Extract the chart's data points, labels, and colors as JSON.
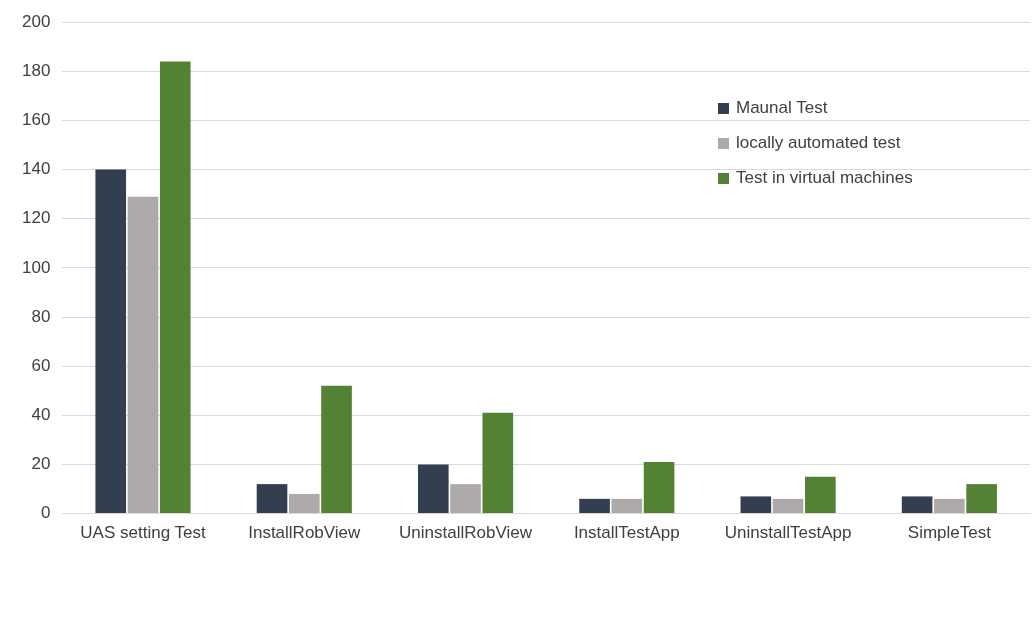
{
  "chart_data": {
    "type": "bar",
    "categories": [
      "UAS setting Test",
      "InstallRobView",
      "UninstallRobView",
      "InstallTestApp",
      "UninstallTestApp",
      "SimpleTest"
    ],
    "series": [
      {
        "name": "Maunal Test",
        "color": "#333f50",
        "values": [
          140,
          12,
          20,
          6,
          7,
          7
        ]
      },
      {
        "name": "locally automated test",
        "color": "#aeaaaa",
        "values": [
          129,
          8,
          12,
          6,
          6,
          6
        ]
      },
      {
        "name": "Test in virtual machines",
        "color": "#548235",
        "values": [
          184,
          52,
          41,
          21,
          15,
          12
        ]
      }
    ],
    "ylim": [
      0,
      200
    ],
    "yticks": [
      0,
      20,
      40,
      60,
      80,
      100,
      120,
      140,
      160,
      180,
      200
    ],
    "grid": "y",
    "legend": "top right"
  }
}
